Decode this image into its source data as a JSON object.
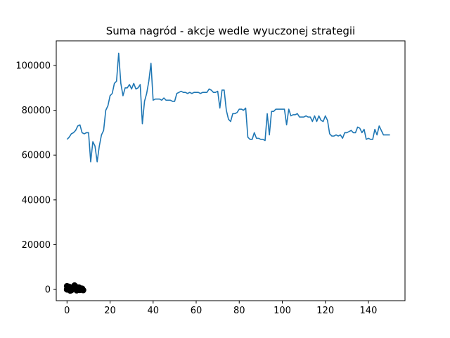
{
  "chart_data": {
    "type": "line",
    "title": "Suma nagród - akcje wedle wyuczonej strategii",
    "xlabel": "",
    "ylabel": "",
    "xlim": [
      -5,
      157
    ],
    "ylim": [
      -5000,
      111000
    ],
    "xticks": [
      0,
      20,
      40,
      60,
      80,
      100,
      120,
      140
    ],
    "yticks": [
      0,
      20000,
      40000,
      60000,
      80000,
      100000
    ],
    "grid": false,
    "series": [
      {
        "color": "#1f77b4",
        "x": [
          0,
          1,
          2,
          3,
          4,
          5,
          6,
          7,
          8,
          9,
          10,
          11,
          12,
          13,
          14,
          15,
          16,
          17,
          18,
          19,
          20,
          21,
          22,
          23,
          24,
          25,
          26,
          27,
          28,
          29,
          30,
          31,
          32,
          33,
          34,
          35,
          36,
          37,
          38,
          39,
          40,
          41,
          42,
          43,
          44,
          45,
          46,
          47,
          48,
          49,
          50,
          51,
          52,
          53,
          54,
          55,
          56,
          57,
          58,
          59,
          60,
          61,
          62,
          63,
          64,
          65,
          66,
          67,
          68,
          69,
          70,
          71,
          72,
          73,
          74,
          75,
          76,
          77,
          78,
          79,
          80,
          81,
          82,
          83,
          84,
          85,
          86,
          87,
          88,
          89,
          90,
          91,
          92,
          93,
          94,
          95,
          96,
          97,
          98,
          99,
          100,
          101,
          102,
          103,
          104,
          105,
          106,
          107,
          108,
          109,
          110,
          111,
          112,
          113,
          114,
          115,
          116,
          117,
          118,
          119,
          120,
          121,
          122,
          123,
          124,
          125,
          126,
          127,
          128,
          129,
          130,
          131,
          132,
          133,
          134,
          135,
          136,
          137,
          138,
          139,
          140,
          141,
          142,
          143,
          144,
          145,
          146,
          147,
          148,
          149,
          150
        ],
        "y": [
          67000,
          68000,
          69500,
          70000,
          71000,
          73000,
          73500,
          70000,
          69500,
          70000,
          70000,
          57000,
          66000,
          64000,
          57000,
          64000,
          69000,
          71000,
          80000,
          82000,
          86500,
          87500,
          92000,
          93000,
          105500,
          92000,
          86500,
          90000,
          90000,
          91500,
          89500,
          92000,
          89500,
          90000,
          91500,
          74000,
          84000,
          87500,
          93000,
          101000,
          84500,
          85000,
          85000,
          85000,
          84500,
          85500,
          84500,
          84500,
          84500,
          84000,
          84000,
          87500,
          88000,
          88500,
          88000,
          88000,
          87500,
          88000,
          87500,
          88000,
          88000,
          88000,
          87500,
          88000,
          88000,
          88000,
          89500,
          89000,
          88000,
          88000,
          88500,
          81000,
          89000,
          89000,
          80000,
          76000,
          75000,
          78500,
          78500,
          79000,
          80500,
          80500,
          80000,
          81000,
          68000,
          67000,
          67000,
          70000,
          67500,
          67500,
          67000,
          67000,
          66500,
          78500,
          69000,
          79500,
          79500,
          80500,
          80500,
          80500,
          80500,
          80500,
          73500,
          80500,
          77500,
          78000,
          78000,
          78500,
          77000,
          77000,
          77000,
          77500,
          77000,
          77000,
          75000,
          77500,
          75000,
          77500,
          75500,
          75000,
          77500,
          75500,
          69500,
          68500,
          68500,
          69000,
          68500,
          69000,
          67500,
          70000,
          70000,
          70500,
          71000,
          70000,
          70000,
          72500,
          72000,
          70000,
          71500,
          67000,
          67500,
          67000,
          67000,
          71500,
          69000,
          73000,
          71000,
          69000,
          69000,
          69000,
          69000
        ]
      },
      {
        "color": "#000000",
        "marker": "o",
        "x": [
          0,
          1,
          2,
          3,
          4,
          5,
          6,
          7,
          0.5,
          1.5,
          2.5,
          3.5,
          4.5,
          5.5,
          6.5,
          7.5,
          0,
          1,
          2,
          3,
          4,
          5,
          6,
          7
        ],
        "y": [
          0,
          500,
          -300,
          1200,
          300,
          700,
          -200,
          200,
          1000,
          -500,
          600,
          1800,
          -400,
          900,
          300,
          -300,
          1500,
          1200,
          -200,
          500,
          1300,
          -100,
          600,
          400
        ]
      }
    ]
  }
}
